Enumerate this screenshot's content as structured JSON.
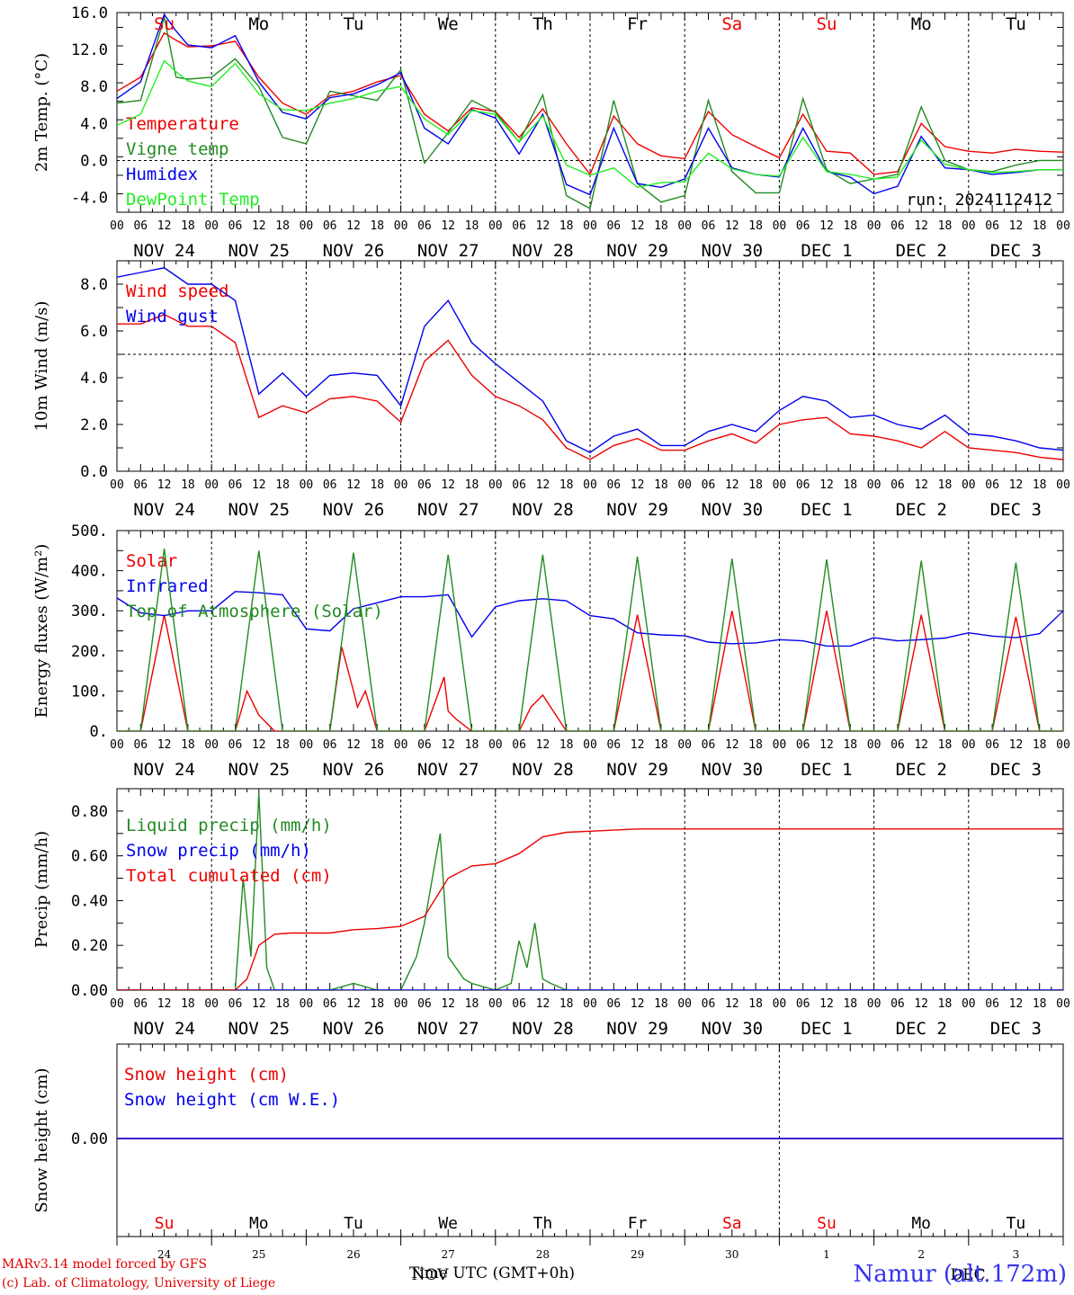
{
  "chart_data": [
    {
      "type": "line",
      "ylabel": "2m Temp. (°C)",
      "ylim": [
        -5.6,
        16.0
      ],
      "yticks": [
        -4.0,
        0.0,
        4.0,
        8.0,
        12.0,
        16.0
      ],
      "ytick_labels": [
        "-4.0",
        "0.0",
        "4.0",
        "8.0",
        "12.0",
        "16.0"
      ],
      "ref_line": 0.0,
      "annotation": "run: 2024112412",
      "day_labels": [
        "Su",
        "Mo",
        "Tu",
        "We",
        "Th",
        "Fr",
        "Sa",
        "Su",
        "Mo",
        "Tu"
      ],
      "weekend_days": [
        0,
        6,
        7
      ],
      "series": [
        {
          "name": "Temperature",
          "color": "#ee0000",
          "x": [
            0,
            6,
            12,
            15,
            18,
            24,
            30,
            36,
            42,
            48,
            54,
            60,
            66,
            72,
            78,
            84,
            90,
            96,
            102,
            108,
            114,
            120,
            126,
            132,
            138,
            144,
            150,
            156,
            162,
            168,
            174,
            180,
            186,
            192,
            198,
            204,
            210,
            216,
            222,
            228,
            234,
            240
          ],
          "y": [
            7.5,
            9.0,
            13.8,
            13.0,
            12.3,
            12.4,
            12.9,
            9.0,
            6.2,
            5.0,
            7.0,
            7.5,
            8.5,
            9.2,
            5.0,
            3.2,
            5.7,
            5.3,
            2.5,
            5.6,
            1.8,
            -1.5,
            4.8,
            1.8,
            0.5,
            0.2,
            5.3,
            2.8,
            1.5,
            0.3,
            5.0,
            1.0,
            0.8,
            -1.5,
            -1.2,
            4.0,
            1.5,
            1.0,
            0.8,
            1.2,
            1.0,
            0.9
          ]
        },
        {
          "name": "Vigne temp",
          "color": "#228b22",
          "x": [
            0,
            6,
            12,
            15,
            18,
            24,
            30,
            36,
            42,
            48,
            54,
            60,
            66,
            72,
            78,
            84,
            90,
            96,
            102,
            108,
            114,
            120,
            126,
            132,
            138,
            144,
            150,
            156,
            162,
            168,
            174,
            180,
            186,
            192,
            198,
            204,
            210,
            216,
            222,
            228,
            234,
            240
          ],
          "y": [
            6.2,
            6.5,
            15.5,
            9.0,
            8.8,
            9.0,
            11.0,
            8.0,
            2.5,
            1.8,
            7.5,
            7.0,
            6.5,
            9.8,
            -0.3,
            3.0,
            6.5,
            5.2,
            2.0,
            7.1,
            -3.8,
            -5.2,
            6.5,
            -2.5,
            -4.5,
            -3.8,
            6.5,
            -1.2,
            -3.5,
            -3.5,
            6.7,
            -1.0,
            -2.5,
            -2.0,
            -1.5,
            5.8,
            0.0,
            -1.0,
            -1.2,
            -0.5,
            0.0,
            0.0
          ]
        },
        {
          "name": "Humidex",
          "color": "#0000ee",
          "x": [
            0,
            6,
            12,
            15,
            18,
            24,
            30,
            36,
            42,
            48,
            54,
            60,
            66,
            72,
            78,
            84,
            90,
            96,
            102,
            108,
            114,
            120,
            126,
            132,
            138,
            144,
            150,
            156,
            162,
            168,
            174,
            180,
            186,
            192,
            198,
            204,
            210,
            216,
            222,
            228,
            234,
            240
          ],
          "y": [
            6.7,
            8.5,
            15.8,
            14.0,
            12.5,
            12.2,
            13.5,
            8.5,
            5.2,
            4.5,
            6.8,
            7.2,
            8.2,
            9.5,
            3.5,
            1.8,
            5.5,
            4.6,
            0.7,
            5.0,
            -2.6,
            -3.7,
            3.5,
            -2.5,
            -2.9,
            -2.0,
            3.5,
            -0.8,
            -1.5,
            -1.8,
            3.5,
            -1.2,
            -1.8,
            -3.6,
            -2.8,
            2.6,
            -0.8,
            -1.0,
            -1.5,
            -1.3,
            -1.0,
            -1.0
          ]
        },
        {
          "name": "DewPoint Temp",
          "color": "#22ee22",
          "x": [
            0,
            6,
            12,
            15,
            18,
            24,
            30,
            36,
            42,
            48,
            54,
            60,
            66,
            72,
            78,
            84,
            90,
            96,
            102,
            108,
            114,
            120,
            126,
            132,
            138,
            144,
            150,
            156,
            162,
            168,
            174,
            180,
            186,
            192,
            198,
            204,
            210,
            216,
            222,
            228,
            234,
            240
          ],
          "y": [
            3.8,
            5.0,
            10.8,
            9.6,
            8.6,
            8.0,
            10.5,
            7.2,
            5.5,
            5.4,
            6.2,
            6.7,
            7.5,
            8.0,
            4.5,
            2.8,
            5.4,
            5.0,
            2.0,
            4.8,
            -0.5,
            -1.6,
            -0.8,
            -2.9,
            -2.4,
            -2.3,
            0.8,
            -0.9,
            -1.5,
            -1.7,
            2.5,
            -1.2,
            -1.5,
            -2.0,
            -1.8,
            2.2,
            -0.4,
            -1.0,
            -1.3,
            -1.2,
            -1.0,
            -1.0
          ]
        }
      ]
    },
    {
      "type": "line",
      "ylabel": "10m Wind (m/s)",
      "ylim": [
        0,
        9.0
      ],
      "yticks": [
        0.0,
        2.0,
        4.0,
        6.0,
        8.0
      ],
      "ytick_labels": [
        "0.0",
        "2.0",
        "4.0",
        "6.0",
        "8.0"
      ],
      "ref_line": 5.0,
      "series": [
        {
          "name": "Wind speed",
          "color": "#ee0000",
          "x": [
            0,
            6,
            12,
            18,
            24,
            30,
            36,
            42,
            48,
            54,
            60,
            66,
            72,
            78,
            84,
            90,
            96,
            102,
            108,
            114,
            120,
            126,
            132,
            138,
            144,
            150,
            156,
            162,
            168,
            174,
            180,
            186,
            192,
            198,
            204,
            210,
            216,
            222,
            228,
            234,
            240
          ],
          "y": [
            6.3,
            6.3,
            6.7,
            6.2,
            6.2,
            5.5,
            2.3,
            2.8,
            2.5,
            3.1,
            3.2,
            3.0,
            2.1,
            4.7,
            5.6,
            4.1,
            3.2,
            2.8,
            2.2,
            1.0,
            0.5,
            1.1,
            1.4,
            0.9,
            0.9,
            1.3,
            1.6,
            1.2,
            2.0,
            2.2,
            2.3,
            1.6,
            1.5,
            1.3,
            1.0,
            1.7,
            1.0,
            0.9,
            0.8,
            0.6,
            0.5
          ]
        },
        {
          "name": "Wind gust",
          "color": "#0000ee",
          "x": [
            0,
            6,
            12,
            18,
            24,
            30,
            36,
            42,
            48,
            54,
            60,
            66,
            72,
            78,
            84,
            90,
            96,
            102,
            108,
            114,
            120,
            126,
            132,
            138,
            144,
            150,
            156,
            162,
            168,
            174,
            180,
            186,
            192,
            198,
            204,
            210,
            216,
            222,
            228,
            234,
            240
          ],
          "y": [
            8.3,
            8.5,
            8.7,
            8.0,
            8.0,
            7.3,
            3.3,
            4.2,
            3.2,
            4.1,
            4.2,
            4.1,
            2.8,
            6.2,
            7.3,
            5.5,
            4.6,
            3.8,
            3.0,
            1.3,
            0.8,
            1.5,
            1.8,
            1.1,
            1.1,
            1.7,
            2.0,
            1.7,
            2.6,
            3.2,
            3.0,
            2.3,
            2.4,
            2.0,
            1.8,
            2.4,
            1.6,
            1.5,
            1.3,
            1.0,
            0.9
          ]
        }
      ]
    },
    {
      "type": "line",
      "ylabel": "Energy fluxes (W/m²)",
      "ylim": [
        0,
        500
      ],
      "yticks": [
        0,
        100,
        200,
        300,
        400,
        500
      ],
      "ytick_labels": [
        "0.",
        "100.",
        "200.",
        "300.",
        "400.",
        "500."
      ],
      "series": [
        {
          "name": "Solar",
          "color": "#ee0000",
          "x": [
            0,
            6,
            12,
            18,
            24,
            30,
            33,
            36,
            40,
            42,
            48,
            54,
            57,
            60,
            61,
            63,
            66,
            72,
            78,
            83,
            84,
            86,
            90,
            96,
            102,
            105,
            108,
            114,
            120,
            126,
            132,
            138,
            144,
            150,
            156,
            162,
            168,
            174,
            180,
            186,
            192,
            198,
            204,
            210,
            216,
            222,
            228,
            234,
            240
          ],
          "y": [
            0,
            0,
            290,
            0,
            0,
            0,
            100,
            40,
            0,
            0,
            0,
            0,
            210,
            100,
            60,
            100,
            0,
            0,
            0,
            135,
            50,
            30,
            0,
            0,
            0,
            60,
            90,
            0,
            0,
            0,
            290,
            0,
            0,
            0,
            300,
            0,
            0,
            0,
            300,
            0,
            0,
            0,
            290,
            0,
            0,
            0,
            285,
            0,
            0
          ]
        },
        {
          "name": "Infrared",
          "color": "#0000ee",
          "x": [
            0,
            6,
            12,
            18,
            24,
            30,
            36,
            42,
            48,
            54,
            60,
            66,
            72,
            78,
            84,
            90,
            96,
            102,
            108,
            114,
            120,
            126,
            132,
            138,
            144,
            150,
            156,
            162,
            168,
            174,
            180,
            186,
            192,
            198,
            204,
            210,
            216,
            222,
            228,
            234,
            240
          ],
          "y": [
            332,
            295,
            288,
            300,
            300,
            348,
            345,
            340,
            255,
            250,
            305,
            320,
            335,
            335,
            340,
            235,
            310,
            325,
            330,
            325,
            288,
            280,
            245,
            240,
            238,
            222,
            218,
            220,
            228,
            225,
            212,
            212,
            233,
            225,
            228,
            232,
            245,
            237,
            233,
            243,
            300
          ]
        },
        {
          "name": "Top of Atmosphere (Solar)",
          "color": "#228b22",
          "x": [
            0,
            6,
            12,
            18,
            24,
            30,
            36,
            42,
            48,
            54,
            60,
            66,
            72,
            78,
            84,
            90,
            96,
            102,
            108,
            114,
            120,
            126,
            132,
            138,
            144,
            150,
            156,
            162,
            168,
            174,
            180,
            186,
            192,
            198,
            204,
            210,
            216,
            222,
            228,
            234,
            240
          ],
          "y": [
            0,
            0,
            455,
            0,
            0,
            0,
            450,
            0,
            0,
            0,
            445,
            0,
            0,
            0,
            440,
            0,
            0,
            0,
            440,
            0,
            0,
            0,
            435,
            0,
            0,
            0,
            430,
            0,
            0,
            0,
            428,
            0,
            0,
            0,
            425,
            0,
            0,
            0,
            420,
            0,
            0
          ]
        }
      ]
    },
    {
      "type": "line",
      "ylabel": "Precip (mm/h)",
      "ylim": [
        0,
        0.9
      ],
      "yticks": [
        0.0,
        0.2,
        0.4,
        0.6,
        0.8
      ],
      "ytick_labels": [
        "0.00",
        "0.20",
        "0.40",
        "0.60",
        "0.80"
      ],
      "series": [
        {
          "name": "Liquid precip (mm/h)",
          "color": "#228b22",
          "x": [
            0,
            30,
            32,
            34,
            36,
            38,
            40,
            42,
            44,
            54,
            60,
            66,
            72,
            76,
            78,
            82,
            84,
            88,
            90,
            96,
            100,
            102,
            104,
            106,
            108,
            110,
            114,
            126,
            132,
            240
          ],
          "y": [
            0,
            0,
            0.5,
            0.15,
            0.88,
            0.1,
            0.0,
            0.0,
            0.0,
            0.0,
            0.03,
            0.0,
            0.0,
            0.15,
            0.3,
            0.7,
            0.15,
            0.05,
            0.03,
            0.0,
            0.03,
            0.22,
            0.1,
            0.3,
            0.05,
            0.03,
            0.0,
            0.0,
            0.0,
            0.0
          ]
        },
        {
          "name": "Snow precip (mm/h)",
          "color": "#0000ee",
          "x": [
            0,
            240
          ],
          "y": [
            0,
            0
          ]
        },
        {
          "name": "Total cumulated (cm)",
          "color": "#ee0000",
          "x": [
            0,
            30,
            33,
            36,
            40,
            44,
            54,
            60,
            66,
            72,
            78,
            84,
            90,
            96,
            102,
            108,
            114,
            120,
            132,
            240
          ],
          "y": [
            0,
            0,
            0.05,
            0.2,
            0.25,
            0.255,
            0.255,
            0.27,
            0.275,
            0.285,
            0.33,
            0.5,
            0.555,
            0.565,
            0.61,
            0.685,
            0.705,
            0.71,
            0.72,
            0.72
          ]
        }
      ]
    },
    {
      "type": "line",
      "ylabel": "Snow height (cm)",
      "ytick_labels": [
        "0.00"
      ],
      "series": [
        {
          "name": "Snow height (cm)",
          "color": "#ee0000",
          "x": [
            0,
            240
          ],
          "y": [
            0,
            0
          ]
        },
        {
          "name": "Snow height (cm W.E.)",
          "color": "#0000ee",
          "x": [
            0,
            240
          ],
          "y": [
            0,
            0
          ]
        }
      ],
      "day_labels": [
        "Su",
        "Mo",
        "Tu",
        "We",
        "Th",
        "Fr",
        "Sa",
        "Su",
        "Mo",
        "Tu"
      ],
      "day_numbers": [
        "24",
        "25",
        "26",
        "27",
        "28",
        "29",
        "30",
        "1",
        "2",
        "3"
      ],
      "month_labels": [
        "NOV",
        "DEC"
      ],
      "xlabel": "Time UTC (GMT+0h)"
    }
  ],
  "x_axis": {
    "hour_ticks": [
      "00",
      "06",
      "12",
      "18"
    ],
    "final_hour_label": "00",
    "date_labels": [
      "NOV 24",
      "NOV 25",
      "NOV 26",
      "NOV 27",
      "NOV 28",
      "NOV 29",
      "NOV 30",
      "DEC  1",
      "DEC  2",
      "DEC  3"
    ]
  },
  "colors": {
    "weekend": "#ee0000",
    "weekday": "#000000",
    "grid": "#000000"
  },
  "footer": {
    "credit_line1": "MARv3.14 model forced by GFS",
    "credit_line2": "(c) Lab. of Climatology, University of Liege",
    "station": "Namur (alt.172m)"
  }
}
